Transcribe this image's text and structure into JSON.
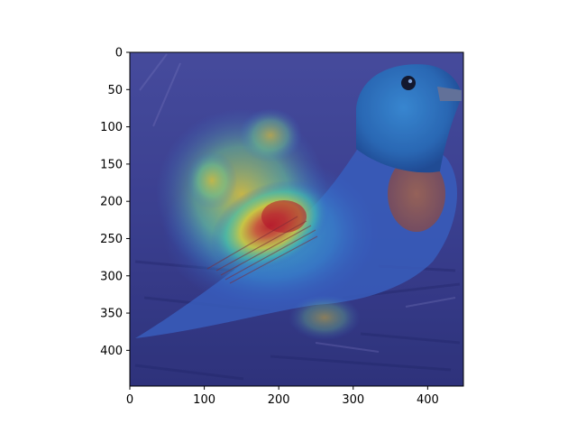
{
  "image": {
    "subject": "bird-photo-with-heatmap-overlay",
    "x_ticks": [
      "0",
      "100",
      "200",
      "300",
      "400"
    ],
    "y_ticks": [
      "0",
      "50",
      "100",
      "150",
      "200",
      "250",
      "300",
      "350",
      "400"
    ],
    "x_tick_values": [
      0,
      100,
      200,
      300,
      400
    ],
    "y_tick_values": [
      0,
      50,
      100,
      150,
      200,
      250,
      300,
      350,
      400
    ],
    "x_range": [
      0,
      448
    ],
    "y_range": [
      0,
      448
    ],
    "colors": {
      "background_overlay": "#3a3f9a",
      "bird_head": "#2f7fc4",
      "bird_breast": "#a0603e",
      "heat_hot": "#d21b1b",
      "heat_warm": "#f2e02a",
      "heat_cool": "#33d6c8"
    }
  }
}
